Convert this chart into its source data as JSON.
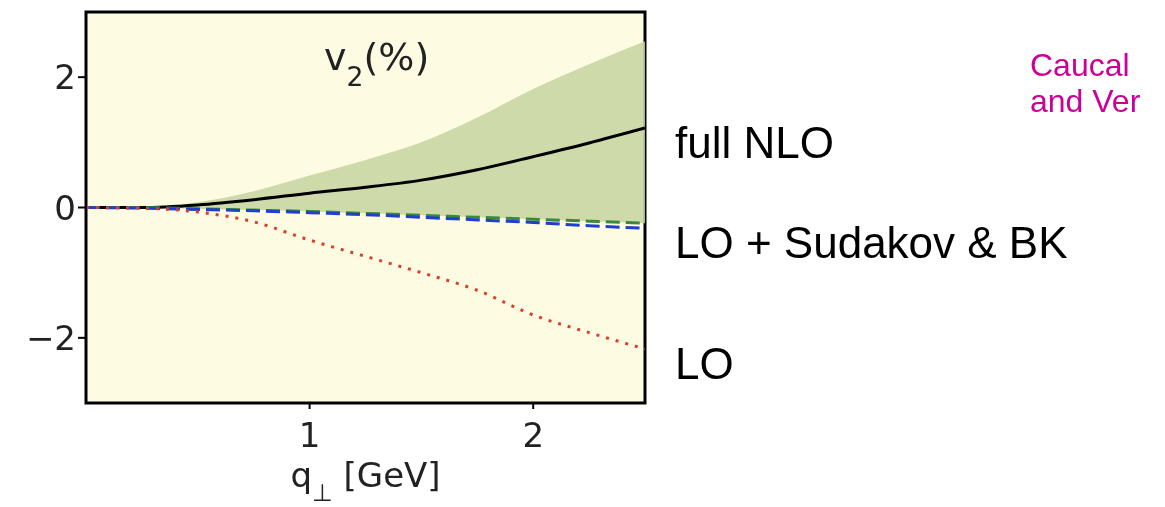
{
  "chart_data": {
    "type": "line",
    "title": "v$_{2}$(%)",
    "xlabel": "q$_{⊥}$ [GeV]",
    "x": [
      0,
      0.25,
      0.5,
      0.75,
      1,
      1.25,
      1.5,
      1.75,
      2,
      2.25,
      2.5
    ],
    "xlim": [
      0,
      2.5
    ],
    "xticks": [
      1,
      2
    ],
    "ylim": [
      -3,
      3
    ],
    "yticks": [
      -2,
      0,
      2
    ],
    "marker": "none",
    "series": [
      {
        "name": "full NLO",
        "color": "#000000",
        "line_style": "solid",
        "values": [
          0,
          0,
          0.04,
          0.12,
          0.22,
          0.31,
          0.42,
          0.58,
          0.78,
          0.99,
          1.22
        ],
        "lower": [
          0,
          0,
          -0.02,
          -0.04,
          -0.06,
          -0.09,
          -0.12,
          -0.15,
          -0.18,
          -0.21,
          -0.24
        ],
        "upper": [
          0,
          0.01,
          0.08,
          0.25,
          0.49,
          0.73,
          1.0,
          1.38,
          1.82,
          2.2,
          2.55
        ]
      },
      {
        "color": "#3a8a3a",
        "line_style": "dashed",
        "values": [
          0,
          0,
          -0.02,
          -0.04,
          -0.06,
          -0.09,
          -0.12,
          -0.15,
          -0.18,
          -0.21,
          -0.24
        ]
      },
      {
        "name": "LO + Sudakov & BK",
        "color": "#1f3fcc",
        "line_style": "dashed",
        "values": [
          0,
          -0.01,
          -0.03,
          -0.05,
          -0.08,
          -0.11,
          -0.15,
          -0.19,
          -0.23,
          -0.28,
          -0.32
        ]
      },
      {
        "name": "LO",
        "color": "#d9402a",
        "line_style": "dotted",
        "values": [
          0,
          -0.01,
          -0.07,
          -0.22,
          -0.5,
          -0.75,
          -1.0,
          -1.27,
          -1.65,
          -1.92,
          -2.17
        ]
      }
    ],
    "annotations": [
      "Caucal",
      "and Ver"
    ]
  }
}
